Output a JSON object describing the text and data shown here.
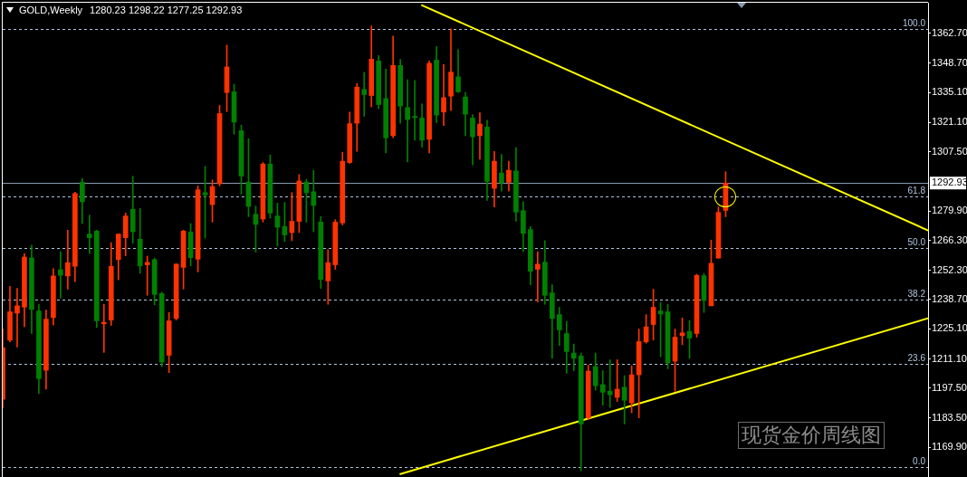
{
  "chart_data": {
    "type": "candlestick",
    "title": "GOLD,Weekly",
    "subtitle": "1280.23 1298.22 1277.25 1292.93",
    "annotations": [
      "现货金价周线图",
      {
        "text": "100.0",
        "y": 1364.8
      },
      {
        "text": "61.8",
        "y": 1286.9
      },
      {
        "text": "50.0",
        "y": 1262.8
      },
      {
        "text": "38.2",
        "y": 1238.7
      },
      {
        "text": "23.6",
        "y": 1208.9
      },
      {
        "text": "0.0",
        "y": 1160.8
      }
    ],
    "categories": [
      null,
      null,
      null,
      null,
      null,
      null,
      null,
      null,
      null,
      null,
      null,
      null,
      null,
      null,
      null,
      null,
      null,
      null,
      null,
      null,
      null,
      null,
      null,
      null,
      null,
      null,
      null,
      null,
      null,
      null,
      null,
      null,
      null,
      null,
      null,
      null,
      null,
      null,
      null,
      null,
      null,
      null,
      null,
      null,
      null,
      null,
      null,
      null,
      null,
      null,
      null,
      null,
      null,
      null,
      null,
      null,
      null,
      null,
      null,
      null,
      null,
      null,
      null,
      null,
      null,
      null,
      null,
      null,
      null,
      null,
      null,
      null,
      null,
      null,
      null,
      null,
      null,
      null,
      null,
      null,
      null,
      null,
      null,
      null,
      null,
      null,
      null,
      null,
      null,
      null,
      null,
      null,
      null,
      null,
      null,
      null,
      null,
      null,
      null,
      null,
      null,
      null,
      null,
      null,
      null,
      null,
      null,
      null,
      null,
      null,
      null,
      null,
      null,
      null,
      null,
      null,
      null,
      null,
      null,
      null,
      null,
      null,
      null,
      null,
      null,
      null,
      null,
      null,
      null
    ],
    "series": [
      {
        "ohlc": [
          [
            1192.3,
            1225.0,
            1188.3,
            1216.3
          ],
          [
            1219.8,
            1244.9,
            1219.0,
            1233.0
          ],
          [
            1232.4,
            1243.9,
            1216.6,
            1235.8
          ],
          [
            1235.2,
            1260.1,
            1226.1,
            1258.5
          ],
          [
            1258.1,
            1264.0,
            1222.9,
            1234.1
          ],
          [
            1233.4,
            1236.6,
            1194.9,
            1201.9
          ],
          [
            1205.8,
            1233.8,
            1197.0,
            1229.6
          ],
          [
            1230.3,
            1253.1,
            1226.8,
            1249.7
          ],
          [
            1252.6,
            1261.0,
            1239.4,
            1250.0
          ],
          [
            1249.7,
            1271.0,
            1243.6,
            1255.9
          ],
          [
            1254.2,
            1288.7,
            1247.0,
            1288.1
          ],
          [
            1293.4,
            1295.1,
            1274.1,
            1284.2
          ],
          [
            1269.2,
            1278.0,
            1260.1,
            1267.5
          ],
          [
            1270.6,
            1271.0,
            1225.7,
            1228.8
          ],
          [
            1227.4,
            1236.5,
            1214.1,
            1228.1
          ],
          [
            1229.2,
            1265.2,
            1226.7,
            1254.2
          ],
          [
            1257.3,
            1269.2,
            1247.9,
            1269.2
          ],
          [
            1267.5,
            1279.0,
            1259.1,
            1277.6
          ],
          [
            1280.7,
            1296.1,
            1265.0,
            1270.3
          ],
          [
            1266.8,
            1281.1,
            1250.9,
            1254.4
          ],
          [
            1254.9,
            1258.9,
            1240.7,
            1256.0
          ],
          [
            1257.3,
            1258.0,
            1236.2,
            1241.1
          ],
          [
            1241.5,
            1242.1,
            1207.5,
            1209.6
          ],
          [
            1212.8,
            1232.7,
            1204.7,
            1228.8
          ],
          [
            1229.9,
            1255.4,
            1229.2,
            1255.2
          ],
          [
            1253.7,
            1271.0,
            1243.6,
            1270.6
          ],
          [
            1270.2,
            1274.1,
            1254.4,
            1258.2
          ],
          [
            1257.5,
            1291.6,
            1251.6,
            1289.8
          ],
          [
            1288.5,
            1300.7,
            1267.3,
            1287.4
          ],
          [
            1282.9,
            1294.4,
            1274.8,
            1291.3
          ],
          [
            1292.6,
            1329.1,
            1291.6,
            1325.3
          ],
          [
            1335.1,
            1357.2,
            1326.2,
            1347.0
          ],
          [
            1335.4,
            1339.0,
            1315.7,
            1321.3
          ],
          [
            1317.3,
            1319.9,
            1287.8,
            1296.2
          ],
          [
            1293.4,
            1313.6,
            1277.3,
            1282.1
          ],
          [
            1278.4,
            1282.2,
            1260.8,
            1273.7
          ],
          [
            1276.2,
            1302.5,
            1274.8,
            1301.8
          ],
          [
            1301.8,
            1306.0,
            1276.6,
            1279.0
          ],
          [
            1277.6,
            1283.6,
            1263.6,
            1272.4
          ],
          [
            1272.7,
            1283.9,
            1265.7,
            1268.8
          ],
          [
            1269.9,
            1288.5,
            1266.1,
            1275.1
          ],
          [
            1275.1,
            1296.9,
            1269.9,
            1293.9
          ],
          [
            1293.4,
            1294.7,
            1274.8,
            1288.4
          ],
          [
            1288.9,
            1298.9,
            1270.3,
            1282.5
          ],
          [
            1274.8,
            1277.3,
            1243.9,
            1248.1
          ],
          [
            1247.4,
            1261.9,
            1236.5,
            1255.9
          ],
          [
            1254.9,
            1275.9,
            1252.8,
            1274.8
          ],
          [
            1274.4,
            1307.3,
            1273.4,
            1303.1
          ],
          [
            1302.5,
            1326.0,
            1302.1,
            1320.6
          ],
          [
            1320.8,
            1339.3,
            1307.7,
            1337.6
          ],
          [
            1336.5,
            1344.5,
            1324.1,
            1334.1
          ],
          [
            1333.7,
            1366.1,
            1328.4,
            1350.6
          ],
          [
            1349.8,
            1352.3,
            1327.6,
            1329.5
          ],
          [
            1332.3,
            1346.0,
            1307.0,
            1314.0
          ],
          [
            1315.0,
            1361.4,
            1314.0,
            1347.7
          ],
          [
            1347.7,
            1350.5,
            1320.8,
            1328.8
          ],
          [
            1328.1,
            1341.0,
            1302.8,
            1322.5
          ],
          [
            1324.0,
            1340.7,
            1312.9,
            1323.4
          ],
          [
            1323.2,
            1329.8,
            1309.6,
            1312.9
          ],
          [
            1313.3,
            1349.8,
            1307.0,
            1348.7
          ],
          [
            1350.2,
            1356.5,
            1321.1,
            1324.6
          ],
          [
            1326.0,
            1348.1,
            1319.7,
            1332.7
          ],
          [
            1333.4,
            1364.8,
            1326.7,
            1344.6
          ],
          [
            1342.4,
            1355.1,
            1335.1,
            1335.4
          ],
          [
            1333.0,
            1335.1,
            1315.0,
            1325.0
          ],
          [
            1323.2,
            1324.8,
            1301.4,
            1314.5
          ],
          [
            1315.0,
            1325.7,
            1304.0,
            1320.4
          ],
          [
            1319.0,
            1322.2,
            1284.9,
            1293.7
          ],
          [
            1290.5,
            1307.7,
            1281.8,
            1303.1
          ],
          [
            1297.6,
            1306.3,
            1289.2,
            1293.0
          ],
          [
            1293.3,
            1303.1,
            1289.2,
            1298.9
          ],
          [
            1298.6,
            1309.4,
            1275.2,
            1279.4
          ],
          [
            1280.1,
            1284.3,
            1261.0,
            1269.5
          ],
          [
            1271.3,
            1272.7,
            1245.6,
            1251.9
          ],
          [
            1252.8,
            1261.0,
            1237.6,
            1255.2
          ],
          [
            1256.1,
            1266.1,
            1236.5,
            1240.7
          ],
          [
            1241.8,
            1245.6,
            1211.4,
            1229.9
          ],
          [
            1231.7,
            1235.1,
            1217.3,
            1224.6
          ],
          [
            1222.9,
            1228.5,
            1204.4,
            1214.5
          ],
          [
            1213.8,
            1218.0,
            1205.6,
            1211.4
          ],
          [
            1212.4,
            1213.8,
            1159.1,
            1180.8
          ],
          [
            1183.6,
            1208.2,
            1182.9,
            1205.4
          ],
          [
            1207.5,
            1213.8,
            1196.5,
            1198.6
          ],
          [
            1199.1,
            1205.6,
            1189.5,
            1195.6
          ],
          [
            1196.1,
            1210.6,
            1188.5,
            1194.4
          ],
          [
            1193.2,
            1210.7,
            1191.3,
            1197.0
          ],
          [
            1197.9,
            1203.3,
            1180.8,
            1191.8
          ],
          [
            1190.6,
            1207.9,
            1186.0,
            1203.7
          ],
          [
            1203.7,
            1225.0,
            1183.6,
            1219.1
          ],
          [
            1219.0,
            1231.7,
            1218.4,
            1226.0
          ],
          [
            1227.1,
            1243.5,
            1219.8,
            1235.1
          ],
          [
            1233.4,
            1237.3,
            1212.1,
            1232.0
          ],
          [
            1233.0,
            1236.5,
            1206.5,
            1209.2
          ],
          [
            1210.0,
            1225.0,
            1196.0,
            1221.2
          ],
          [
            1221.9,
            1230.2,
            1217.7,
            1223.2
          ],
          [
            1223.9,
            1228.9,
            1211.3,
            1220.8
          ],
          [
            1222.9,
            1250.5,
            1221.2,
            1250.0
          ],
          [
            1249.8,
            1250.9,
            1232.7,
            1238.3
          ],
          [
            1235.8,
            1266.4,
            1235.8,
            1255.6
          ],
          [
            1258.0,
            1281.8,
            1258.0,
            1279.3
          ],
          [
            1280.23,
            1298.22,
            1277.25,
            1292.93
          ],
          null,
          null,
          null,
          null,
          null,
          null,
          null,
          null,
          null,
          null,
          null,
          null,
          null,
          null,
          null,
          null,
          null,
          null,
          null,
          null,
          null,
          null,
          null,
          null,
          null,
          null,
          null,
          null
        ],
        "colors": [
          "#ff3300",
          "#ff3300",
          "#ff3300",
          "#ff3300",
          "#008000",
          "#008000",
          "#ff3300",
          "#ff3300",
          "#008000",
          "#ff3300",
          "#ff3300",
          "#008000",
          "#008000",
          "#008000",
          "#ff3300",
          "#ff3300",
          "#ff3300",
          "#ff3300",
          "#008000",
          "#008000",
          "#ff3300",
          "#008000",
          "#008000",
          "#ff3300",
          "#ff3300",
          "#ff3300",
          "#008000",
          "#ff3300",
          "#008000",
          "#ff3300",
          "#ff3300",
          "#ff3300",
          "#008000",
          "#008000",
          "#008000",
          "#008000",
          "#ff3300",
          "#008000",
          "#008000",
          "#008000",
          "#ff3300",
          "#ff3300",
          "#008000",
          "#008000",
          "#008000",
          "#ff3300",
          "#ff3300",
          "#ff3300",
          "#ff3300",
          "#ff3300",
          "#008000",
          "#ff3300",
          "#008000",
          "#008000",
          "#ff3300",
          "#008000",
          "#008000",
          "#008000",
          "#008000",
          "#ff3300",
          "#008000",
          "#ff3300",
          "#ff3300",
          "#008000",
          "#008000",
          "#008000",
          "#ff3300",
          "#008000",
          "#ff3300",
          "#008000",
          "#ff3300",
          "#008000",
          "#008000",
          "#008000",
          "#ff3300",
          "#008000",
          "#008000",
          "#008000",
          "#008000",
          "#008000",
          "#008000",
          "#ff3300",
          "#008000",
          "#008000",
          "#008000",
          "#ff3300",
          "#008000",
          "#ff3300",
          "#ff3300",
          "#ff3300",
          "#ff3300",
          "#008000",
          "#008000",
          "#ff3300",
          "#ff3300",
          "#008000",
          "#ff3300",
          "#008000",
          "#ff3300",
          "#ff3300",
          "#ff3300",
          null,
          null,
          null,
          null,
          null,
          null,
          null,
          null,
          null,
          null,
          null,
          null,
          null,
          null,
          null,
          null,
          null,
          null,
          null,
          null,
          null,
          null,
          null,
          null,
          null,
          null,
          null,
          null
        ]
      },
      {
        "type": "line",
        "color": "#ffff00",
        "values": [
          null,
          null,
          null,
          null,
          null,
          null,
          null,
          null,
          null,
          null,
          null,
          null,
          null,
          null,
          null,
          null,
          null,
          null,
          null,
          null,
          null,
          null,
          null,
          null,
          null,
          null,
          null,
          null,
          null,
          null,
          null,
          null,
          null,
          null,
          null,
          null,
          null,
          null,
          null,
          null,
          null,
          null,
          null,
          null,
          null,
          null,
          null,
          null,
          null,
          null,
          null,
          null,
          null,
          null,
          null,
          null,
          null,
          null,
          1375.7,
          null,
          null,
          null,
          null,
          null,
          null,
          null,
          null,
          null,
          null,
          null,
          null,
          null,
          null,
          null,
          null,
          null,
          null,
          null,
          null,
          null,
          null,
          null,
          null,
          null,
          null,
          null,
          null,
          null,
          null,
          null,
          null,
          null,
          null,
          null,
          null,
          null,
          null,
          null,
          null,
          null,
          null,
          null,
          null,
          null,
          null,
          null,
          null,
          null,
          null,
          null,
          null,
          null,
          null,
          null,
          null,
          null,
          null,
          null,
          null,
          null,
          null,
          null,
          null,
          null,
          null,
          null,
          null,
          null,
          1270.9
        ]
      },
      {
        "type": "line",
        "color": "#ffff00",
        "values": [
          null,
          null,
          null,
          null,
          null,
          null,
          null,
          null,
          null,
          null,
          null,
          null,
          null,
          null,
          null,
          null,
          null,
          null,
          null,
          null,
          null,
          null,
          null,
          null,
          null,
          null,
          null,
          null,
          null,
          null,
          null,
          null,
          null,
          null,
          null,
          null,
          null,
          null,
          null,
          null,
          null,
          null,
          null,
          null,
          null,
          null,
          null,
          null,
          null,
          null,
          null,
          null,
          null,
          null,
          null,
          1157.5,
          null,
          null,
          null,
          null,
          null,
          null,
          null,
          null,
          null,
          null,
          null,
          null,
          null,
          null,
          null,
          null,
          null,
          null,
          null,
          null,
          null,
          null,
          null,
          null,
          null,
          null,
          null,
          null,
          null,
          null,
          null,
          null,
          null,
          null,
          null,
          null,
          null,
          null,
          null,
          null,
          null,
          null,
          null,
          null,
          null,
          null,
          null,
          null,
          null,
          null,
          null,
          null,
          null,
          null,
          null,
          null,
          null,
          null,
          null,
          null,
          null,
          null,
          null,
          null,
          null,
          null,
          null,
          null,
          null,
          null,
          null,
          null,
          1230.0
        ]
      }
    ],
    "ylim": [
      1156.1,
      1376.9
    ],
    "yticks": [
      {
        "value": 1169.9,
        "label": "1169.90"
      },
      {
        "value": 1183.5,
        "label": "1183.50"
      },
      {
        "value": 1197.5,
        "label": "1197.50"
      },
      {
        "value": 1211.1,
        "label": "1211.10"
      },
      {
        "value": 1225.1,
        "label": "1225.10"
      },
      {
        "value": 1238.7,
        "label": "1238.70"
      },
      {
        "value": 1252.3,
        "label": "1252.30"
      },
      {
        "value": 1266.3,
        "label": "1266.30"
      },
      {
        "value": 1279.9,
        "label": "1279.90"
      },
      {
        "value": 1307.5,
        "label": "1307.50"
      },
      {
        "value": 1321.1,
        "label": "1321.10"
      },
      {
        "value": 1335.1,
        "label": "1335.10"
      },
      {
        "value": 1348.7,
        "label": "1348.70"
      },
      {
        "value": 1362.7,
        "label": "1362.70"
      }
    ],
    "ref_lines": [
      {
        "axis": "y",
        "value": 1364.8,
        "color": "#b0c4de",
        "line_style": "dashed"
      },
      {
        "axis": "y",
        "value": 1286.9,
        "color": "#b0c4de",
        "line_style": "dashed"
      },
      {
        "axis": "y",
        "value": 1262.8,
        "color": "#b0c4de",
        "line_style": "dashed"
      },
      {
        "axis": "y",
        "value": 1238.7,
        "color": "#b0c4de",
        "line_style": "dashed"
      },
      {
        "axis": "y",
        "value": 1208.9,
        "color": "#b0c4de",
        "line_style": "dashed"
      },
      {
        "axis": "y",
        "value": 1160.8,
        "color": "#b0c4de",
        "line_style": "dashed"
      },
      {
        "axis": "y",
        "value": 1292.93,
        "label": "1292.93",
        "color": "#8a9aae",
        "line_style": "solid"
      }
    ],
    "grid": false,
    "legend": false,
    "marker": "none",
    "tick_labels": "y"
  }
}
